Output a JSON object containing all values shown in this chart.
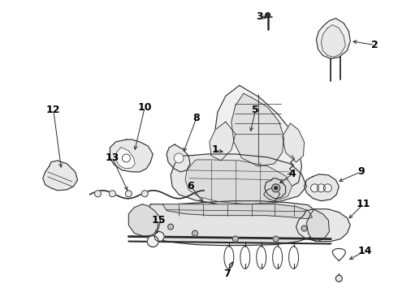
{
  "background_color": "#ffffff",
  "line_color": "#2a2a2a",
  "label_color": "#000000",
  "fig_width": 4.9,
  "fig_height": 3.6,
  "dpi": 100,
  "label_fontsize": 9,
  "arrow_lw": 0.7,
  "parts_lw": 0.8,
  "label_positions": {
    "1": [
      0.385,
      0.515,
      0.395,
      0.525
    ],
    "2": [
      0.915,
      0.88,
      0.895,
      0.875
    ],
    "3": [
      0.658,
      0.95,
      0.672,
      0.945
    ],
    "4": [
      0.598,
      0.615,
      0.59,
      0.625
    ],
    "5": [
      0.518,
      0.72,
      0.51,
      0.7
    ],
    "6": [
      0.348,
      0.44,
      0.36,
      0.445
    ],
    "7": [
      0.478,
      0.078,
      0.47,
      0.105
    ],
    "8": [
      0.348,
      0.71,
      0.352,
      0.695
    ],
    "9": [
      0.768,
      0.49,
      0.745,
      0.49
    ],
    "10": [
      0.248,
      0.73,
      0.258,
      0.715
    ],
    "11": [
      0.755,
      0.36,
      0.732,
      0.368
    ],
    "12": [
      0.098,
      0.73,
      0.108,
      0.715
    ],
    "13": [
      0.198,
      0.59,
      0.215,
      0.59
    ],
    "14": [
      0.752,
      0.108,
      0.745,
      0.128
    ],
    "15": [
      0.298,
      0.37,
      0.318,
      0.362
    ]
  }
}
